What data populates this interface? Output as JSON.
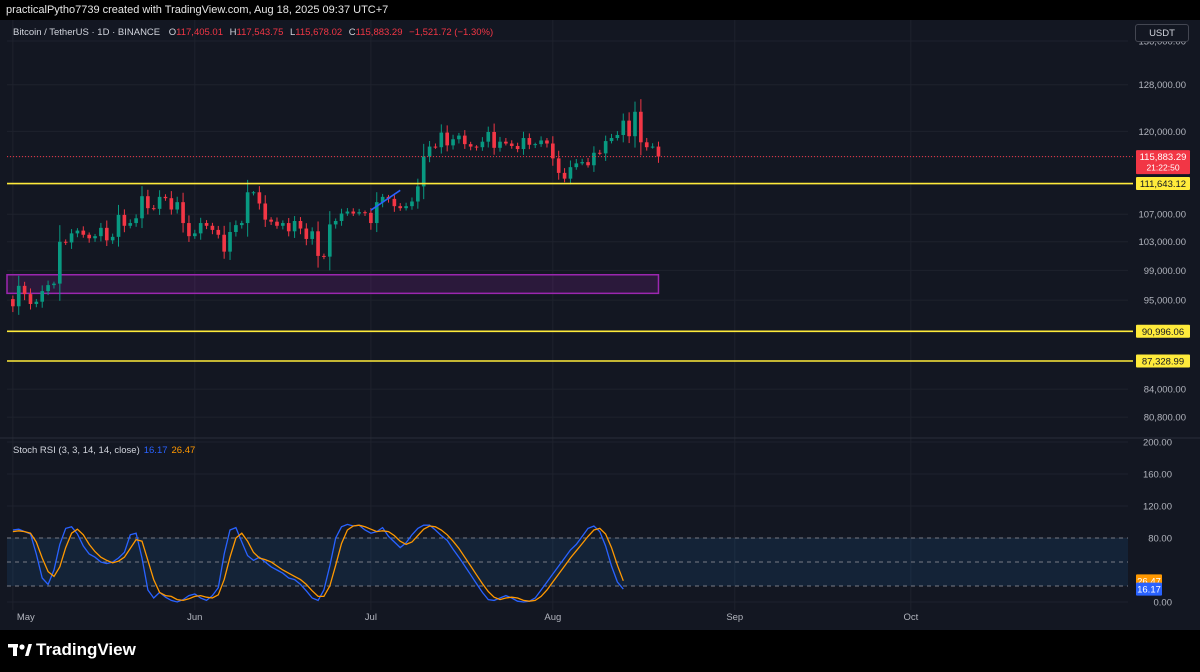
{
  "header": {
    "attribution": "practicalPytho7739 created with TradingView.com, Aug 18, 2025 09:37 UTC+7"
  },
  "legend": {
    "symbol": "Bitcoin / TetherUS · 1D · BINANCE",
    "open_label": "O",
    "open": "117,405.01",
    "high_label": "H",
    "high": "117,543.75",
    "low_label": "L",
    "low": "115,678.02",
    "close_label": "C",
    "close": "115,883.29",
    "change": "−1,521.72 (−1.30%)"
  },
  "currency_button": "USDT",
  "indicator": {
    "name": "Stoch RSI (3, 3, 14, 14, close)",
    "k_value": "16.17",
    "d_value": "26.47"
  },
  "footer": {
    "brand": "TradingView",
    "logo": "tradingview-logo-icon"
  },
  "colors": {
    "background": "#131722",
    "up": "#089981",
    "down": "#f23645",
    "level_line": "#ffeb3b",
    "zone_border": "#9c27b0",
    "trend_line": "#2962ff",
    "stoch_k": "#2962ff",
    "stoch_d": "#ff9800"
  },
  "chart_data": [
    {
      "type": "candlestick",
      "title": "Bitcoin / TetherUS · 1D · BINANCE",
      "x_ticks": [
        "May",
        "Jun",
        "Jul",
        "Aug",
        "Sep",
        "Oct"
      ],
      "x_tick_days": [
        0,
        31,
        61,
        92,
        123,
        153
      ],
      "xlim_days": [
        -1,
        190
      ],
      "y_ticks": [
        "80,800.00",
        "84,000.00",
        "87,328.99",
        "90,996.06",
        "95,000.00",
        "99,000.00",
        "103,000.00",
        "107,000.00",
        "111,643.12",
        "115,883.29",
        "120,000.00",
        "128,000.00",
        "136,000.00"
      ],
      "y_tick_values": [
        80800,
        84000,
        87328.99,
        90996.06,
        95000,
        99000,
        103000,
        107000,
        111643.12,
        115883.29,
        120000,
        128000,
        136000
      ],
      "ylim": [
        78500,
        140000
      ],
      "log_scale": true,
      "grid": true,
      "last_price": {
        "value": 115883.29,
        "label": "115,883.29",
        "countdown": "21:22:50"
      },
      "horizontal_levels": [
        {
          "value": 111643.12,
          "label": "111,643.12"
        },
        {
          "value": 90996.06,
          "label": "90,996.06"
        },
        {
          "value": 87328.99,
          "label": "87,328.99"
        }
      ],
      "zone": {
        "day_start": -1,
        "day_end": 110,
        "high": 98400,
        "low": 95900
      },
      "trend_line": {
        "from": {
          "day": 61,
          "price": 107600
        },
        "to": {
          "day": 66,
          "price": 110600
        }
      },
      "closes": [
        94200,
        96900,
        95800,
        94500,
        94800,
        96200,
        97000,
        97200,
        103000,
        102900,
        104200,
        104600,
        104000,
        103500,
        103800,
        105000,
        103200,
        103700,
        106900,
        105300,
        105700,
        106400,
        109700,
        107900,
        107800,
        109600,
        109400,
        107700,
        108800,
        105700,
        103800,
        104200,
        105700,
        105300,
        104700,
        104000,
        101600,
        104400,
        105400,
        105700,
        110300,
        110300,
        108600,
        106200,
        105900,
        105300,
        105700,
        104500,
        106000,
        104900,
        103400,
        104500,
        101000,
        100900,
        105500,
        106000,
        107100,
        107400,
        107100,
        107300,
        107200,
        105700,
        108800,
        109600,
        109300,
        108200,
        107900,
        108200,
        108900,
        111200,
        115900,
        117500,
        117400,
        119800,
        117700,
        118700,
        119300,
        117900,
        117500,
        117400,
        118300,
        119900,
        117300,
        118300,
        118000,
        117600,
        117100,
        118900,
        117800,
        117900,
        118500,
        118000,
        115600,
        113300,
        112400,
        114200,
        114800,
        115000,
        114500,
        116500,
        116400,
        118400,
        118900,
        119400,
        121800,
        119200,
        123300,
        118200,
        117400,
        117500,
        115900
      ]
    },
    {
      "type": "line",
      "title": "Stoch RSI (3, 3, 14, 14, close)",
      "y_ticks": [
        "0.00",
        "80.00",
        "120.00",
        "160.00",
        "200.00"
      ],
      "y_tick_values": [
        0,
        80,
        120,
        160,
        200
      ],
      "ylim": [
        -10,
        205
      ],
      "bands": {
        "upper": 80,
        "middle": 50,
        "lower": 20
      },
      "series": [
        {
          "name": "16.17",
          "values": [
            90,
            91,
            88,
            85,
            60,
            30,
            22,
            40,
            72,
            92,
            94,
            85,
            70,
            60,
            56,
            50,
            48,
            50,
            55,
            62,
            84,
            86,
            55,
            15,
            5,
            12,
            6,
            2,
            0,
            3,
            8,
            10,
            5,
            2,
            8,
            18,
            60,
            90,
            93,
            75,
            58,
            52,
            56,
            50,
            44,
            40,
            36,
            30,
            28,
            22,
            14,
            5,
            2,
            15,
            45,
            80,
            94,
            97,
            95,
            96,
            90,
            86,
            88,
            93,
            82,
            75,
            68,
            74,
            84,
            92,
            96,
            96,
            90,
            83,
            77,
            66,
            56,
            45,
            34,
            23,
            12,
            3,
            2,
            5,
            8,
            5,
            1,
            0,
            1,
            5,
            15,
            25,
            35,
            45,
            55,
            65,
            72,
            82,
            92,
            95,
            88,
            70,
            45,
            25,
            16.17
          ]
        },
        {
          "name": "26.47",
          "values": [
            88,
            89,
            88,
            86,
            75,
            55,
            38,
            32,
            44,
            68,
            86,
            91,
            84,
            72,
            63,
            56,
            52,
            49,
            51,
            56,
            67,
            78,
            76,
            52,
            28,
            12,
            8,
            7,
            3,
            2,
            4,
            7,
            8,
            6,
            5,
            9,
            28,
            56,
            80,
            86,
            76,
            62,
            55,
            53,
            50,
            45,
            40,
            36,
            32,
            28,
            22,
            14,
            7,
            7,
            20,
            46,
            73,
            90,
            95,
            96,
            94,
            91,
            88,
            89,
            88,
            83,
            76,
            72,
            75,
            83,
            91,
            95,
            94,
            90,
            84,
            76,
            67,
            56,
            45,
            34,
            23,
            13,
            6,
            3,
            5,
            6,
            5,
            2,
            1,
            2,
            7,
            15,
            25,
            35,
            45,
            55,
            64,
            73,
            82,
            90,
            92,
            85,
            68,
            46,
            26.47
          ]
        }
      ]
    }
  ]
}
